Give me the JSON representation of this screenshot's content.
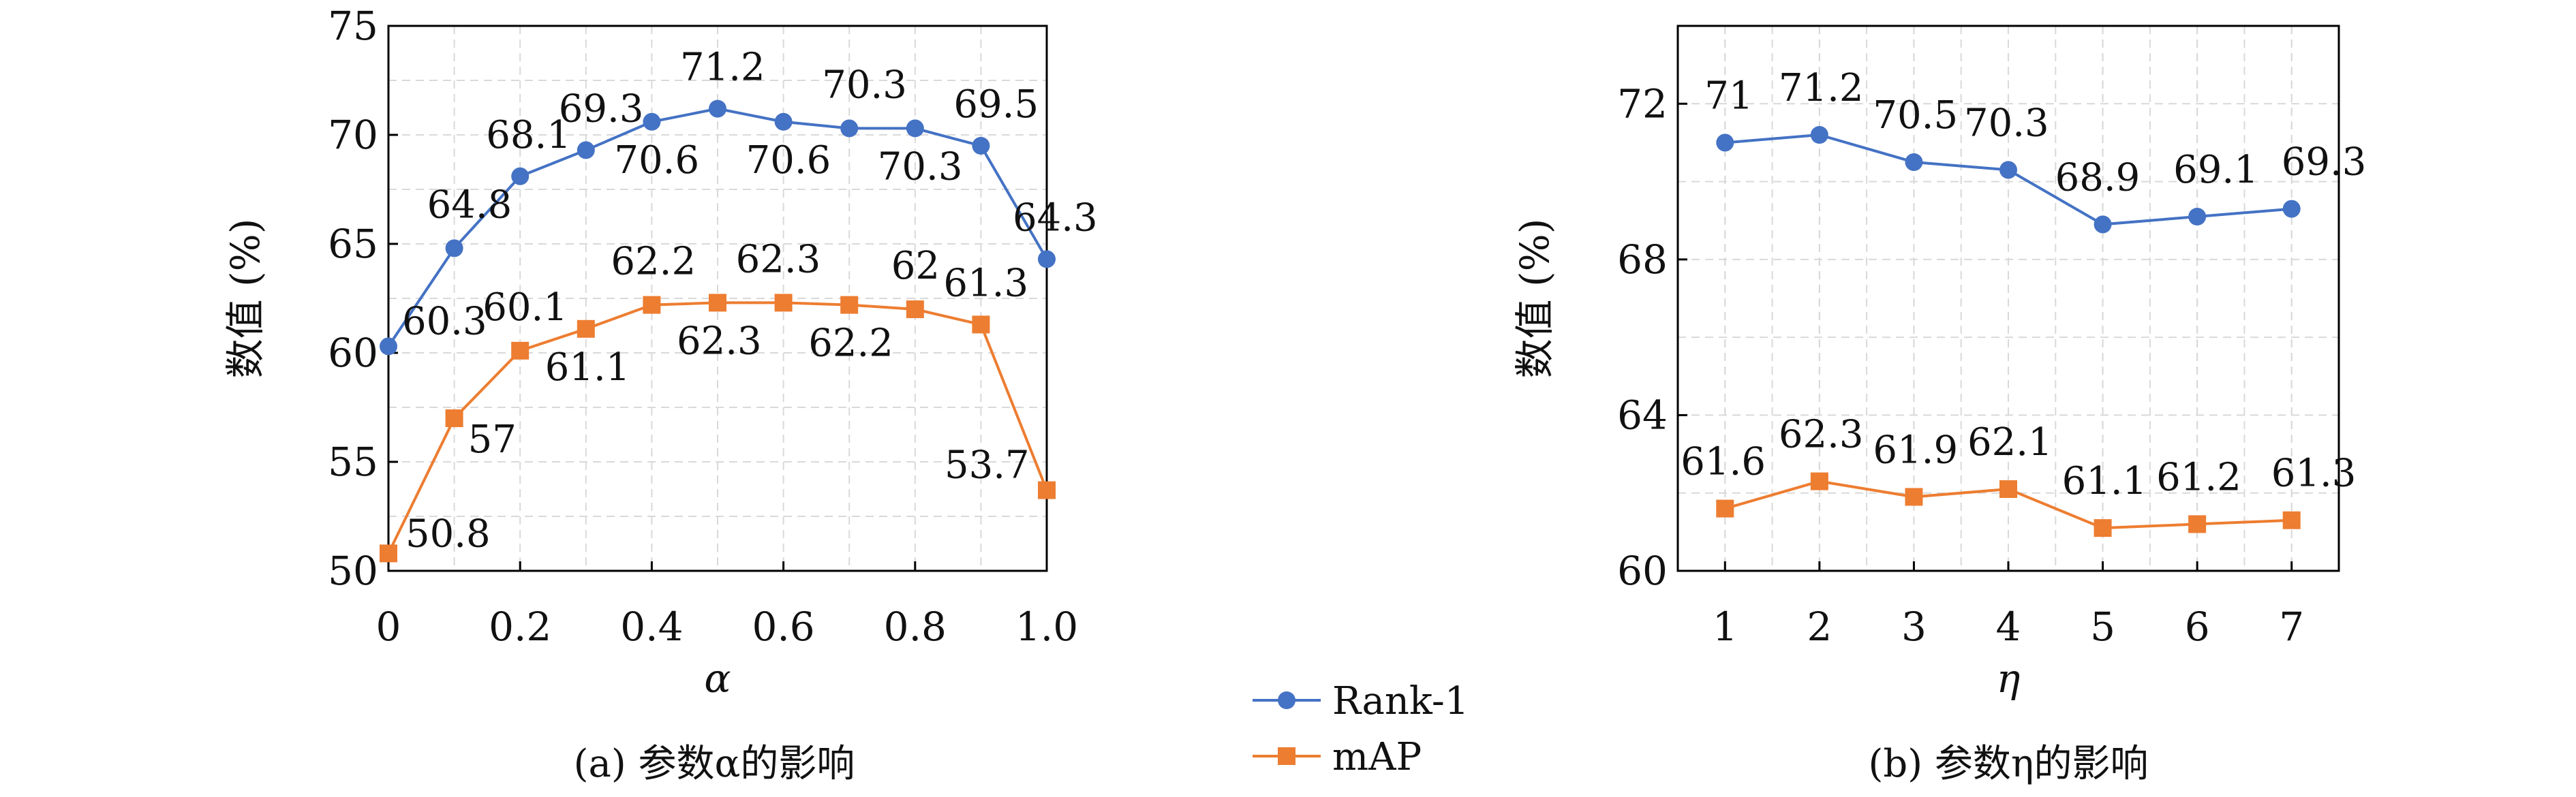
{
  "chart_data": [
    {
      "type": "line",
      "caption": "(a) 参数α的影响",
      "xlabel": "α",
      "ylabel": "数值 (%)",
      "x": [
        0,
        0.1,
        0.2,
        0.3,
        0.4,
        0.5,
        0.6,
        0.7,
        0.8,
        0.9,
        1.0
      ],
      "xticks": [
        "0",
        "0.2",
        "0.4",
        "0.6",
        "0.8",
        "1.0"
      ],
      "xtick_values": [
        0,
        0.2,
        0.4,
        0.6,
        0.8,
        1.0
      ],
      "yticks": [
        "50",
        "55",
        "60",
        "65",
        "70",
        "75"
      ],
      "ylim": [
        50,
        75
      ],
      "xlim": [
        0,
        1.0
      ],
      "grid": true,
      "series": [
        {
          "name": "Rank-1",
          "color": "#4472C4",
          "marker": "circle",
          "values": [
            60.3,
            64.8,
            68.1,
            69.3,
            70.6,
            71.2,
            70.6,
            70.3,
            70.3,
            69.5,
            64.3
          ],
          "labels": [
            "60.3",
            "64.8",
            "68.1",
            "69.3",
            "70.6",
            "71.2",
            "70.6",
            "70.3",
            "70.3",
            "69.5",
            "64.3"
          ]
        },
        {
          "name": "mAP",
          "color": "#ED7D31",
          "marker": "square",
          "values": [
            50.8,
            57,
            60.1,
            61.1,
            62.2,
            62.3,
            62.3,
            62.2,
            62,
            61.3,
            53.7
          ],
          "labels": [
            "50.8",
            "57",
            "60.1",
            "61.1",
            "62.2",
            "62.3",
            "62.3",
            "62.2",
            "62",
            "61.3",
            "53.7"
          ]
        }
      ]
    },
    {
      "type": "line",
      "caption": "(b) 参数η的影响",
      "xlabel": "η",
      "ylabel": "数值 (%)",
      "x": [
        1,
        2,
        3,
        4,
        5,
        6,
        7
      ],
      "xticks": [
        "1",
        "2",
        "3",
        "4",
        "5",
        "6",
        "7"
      ],
      "xtick_values": [
        1,
        2,
        3,
        4,
        5,
        6,
        7
      ],
      "yticks": [
        "60",
        "64",
        "68",
        "72"
      ],
      "ylim": [
        60,
        74
      ],
      "xlim": [
        0.5,
        7.5
      ],
      "grid": true,
      "series": [
        {
          "name": "Rank-1",
          "color": "#4472C4",
          "marker": "circle",
          "values": [
            71,
            71.2,
            70.5,
            70.3,
            68.9,
            69.1,
            69.3
          ],
          "labels": [
            "71",
            "71.2",
            "70.5",
            "70.3",
            "68.9",
            "69.1",
            "69.3"
          ]
        },
        {
          "name": "mAP",
          "color": "#ED7D31",
          "marker": "square",
          "values": [
            61.6,
            62.3,
            61.9,
            62.1,
            61.1,
            61.2,
            61.3
          ],
          "labels": [
            "61.6",
            "62.3",
            "61.9",
            "62.1",
            "61.1",
            "61.2",
            "61.3"
          ]
        }
      ]
    }
  ],
  "legend": [
    {
      "name": "Rank-1",
      "color": "#4472C4",
      "marker": "circle"
    },
    {
      "name": "mAP",
      "color": "#ED7D31",
      "marker": "square"
    }
  ]
}
